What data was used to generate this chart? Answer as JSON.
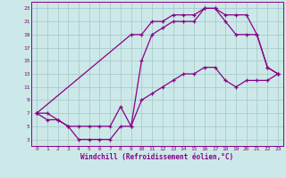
{
  "xlabel": "Windchill (Refroidissement éolien,°C)",
  "bg_color": "#cce8e8",
  "grid_color": "#aacccc",
  "line_color": "#880088",
  "xlim": [
    -0.5,
    23.5
  ],
  "ylim": [
    2,
    24
  ],
  "xticks": [
    0,
    1,
    2,
    3,
    4,
    5,
    6,
    7,
    8,
    9,
    10,
    11,
    12,
    13,
    14,
    15,
    16,
    17,
    18,
    19,
    20,
    21,
    22,
    23
  ],
  "yticks": [
    3,
    5,
    7,
    9,
    11,
    13,
    15,
    17,
    19,
    21,
    23
  ],
  "curve_top_x": [
    0,
    9,
    10,
    11,
    12,
    13,
    14,
    15,
    16,
    17,
    18,
    19,
    20,
    21,
    22,
    23
  ],
  "curve_top_y": [
    7,
    19,
    19,
    21,
    21,
    22,
    22,
    22,
    23,
    23,
    22,
    22,
    22,
    19,
    14,
    13
  ],
  "curve_mid_x": [
    0,
    1,
    2,
    3,
    4,
    5,
    6,
    7,
    8,
    9,
    10,
    11,
    12,
    13,
    14,
    15,
    16,
    17,
    18,
    19,
    20,
    21,
    22,
    23
  ],
  "curve_mid_y": [
    7,
    6,
    6,
    5,
    5,
    5,
    5,
    5,
    8,
    5,
    15,
    19,
    20,
    21,
    21,
    21,
    23,
    23,
    21,
    19,
    19,
    19,
    14,
    13
  ],
  "curve_bot_x": [
    0,
    1,
    2,
    3,
    4,
    5,
    6,
    7,
    8,
    9,
    10,
    11,
    12,
    13,
    14,
    15,
    16,
    17,
    18,
    19,
    20,
    21,
    22,
    23
  ],
  "curve_bot_y": [
    7,
    7,
    6,
    5,
    3,
    3,
    3,
    3,
    5,
    5,
    9,
    10,
    11,
    12,
    13,
    13,
    14,
    14,
    12,
    11,
    12,
    12,
    12,
    13
  ]
}
